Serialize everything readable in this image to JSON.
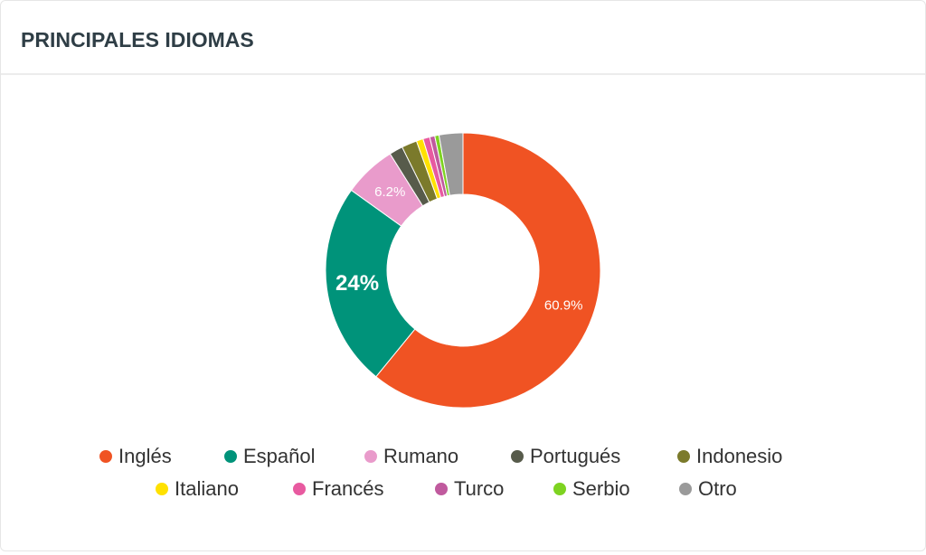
{
  "chart_data": {
    "type": "donut",
    "title": "PRINCIPALES IDIOMAS",
    "categories": [
      "Inglés",
      "Español",
      "Rumano",
      "Portugués",
      "Indonesio",
      "Italiano",
      "Francés",
      "Turco",
      "Serbio",
      "Otro"
    ],
    "values": [
      60.9,
      24,
      6.2,
      1.6,
      1.8,
      0.8,
      0.8,
      0.6,
      0.5,
      2.8
    ],
    "value_labels": [
      "60.9%",
      "24%",
      "6.2%",
      null,
      null,
      null,
      null,
      null,
      null,
      null
    ],
    "colors": [
      "#f05323",
      "#00937a",
      "#e99bcb",
      "#575b4b",
      "#7b7a2b",
      "#ffe100",
      "#e85aa0",
      "#c05a9e",
      "#7ed321",
      "#9a9a9a"
    ],
    "legend": "bottom"
  }
}
